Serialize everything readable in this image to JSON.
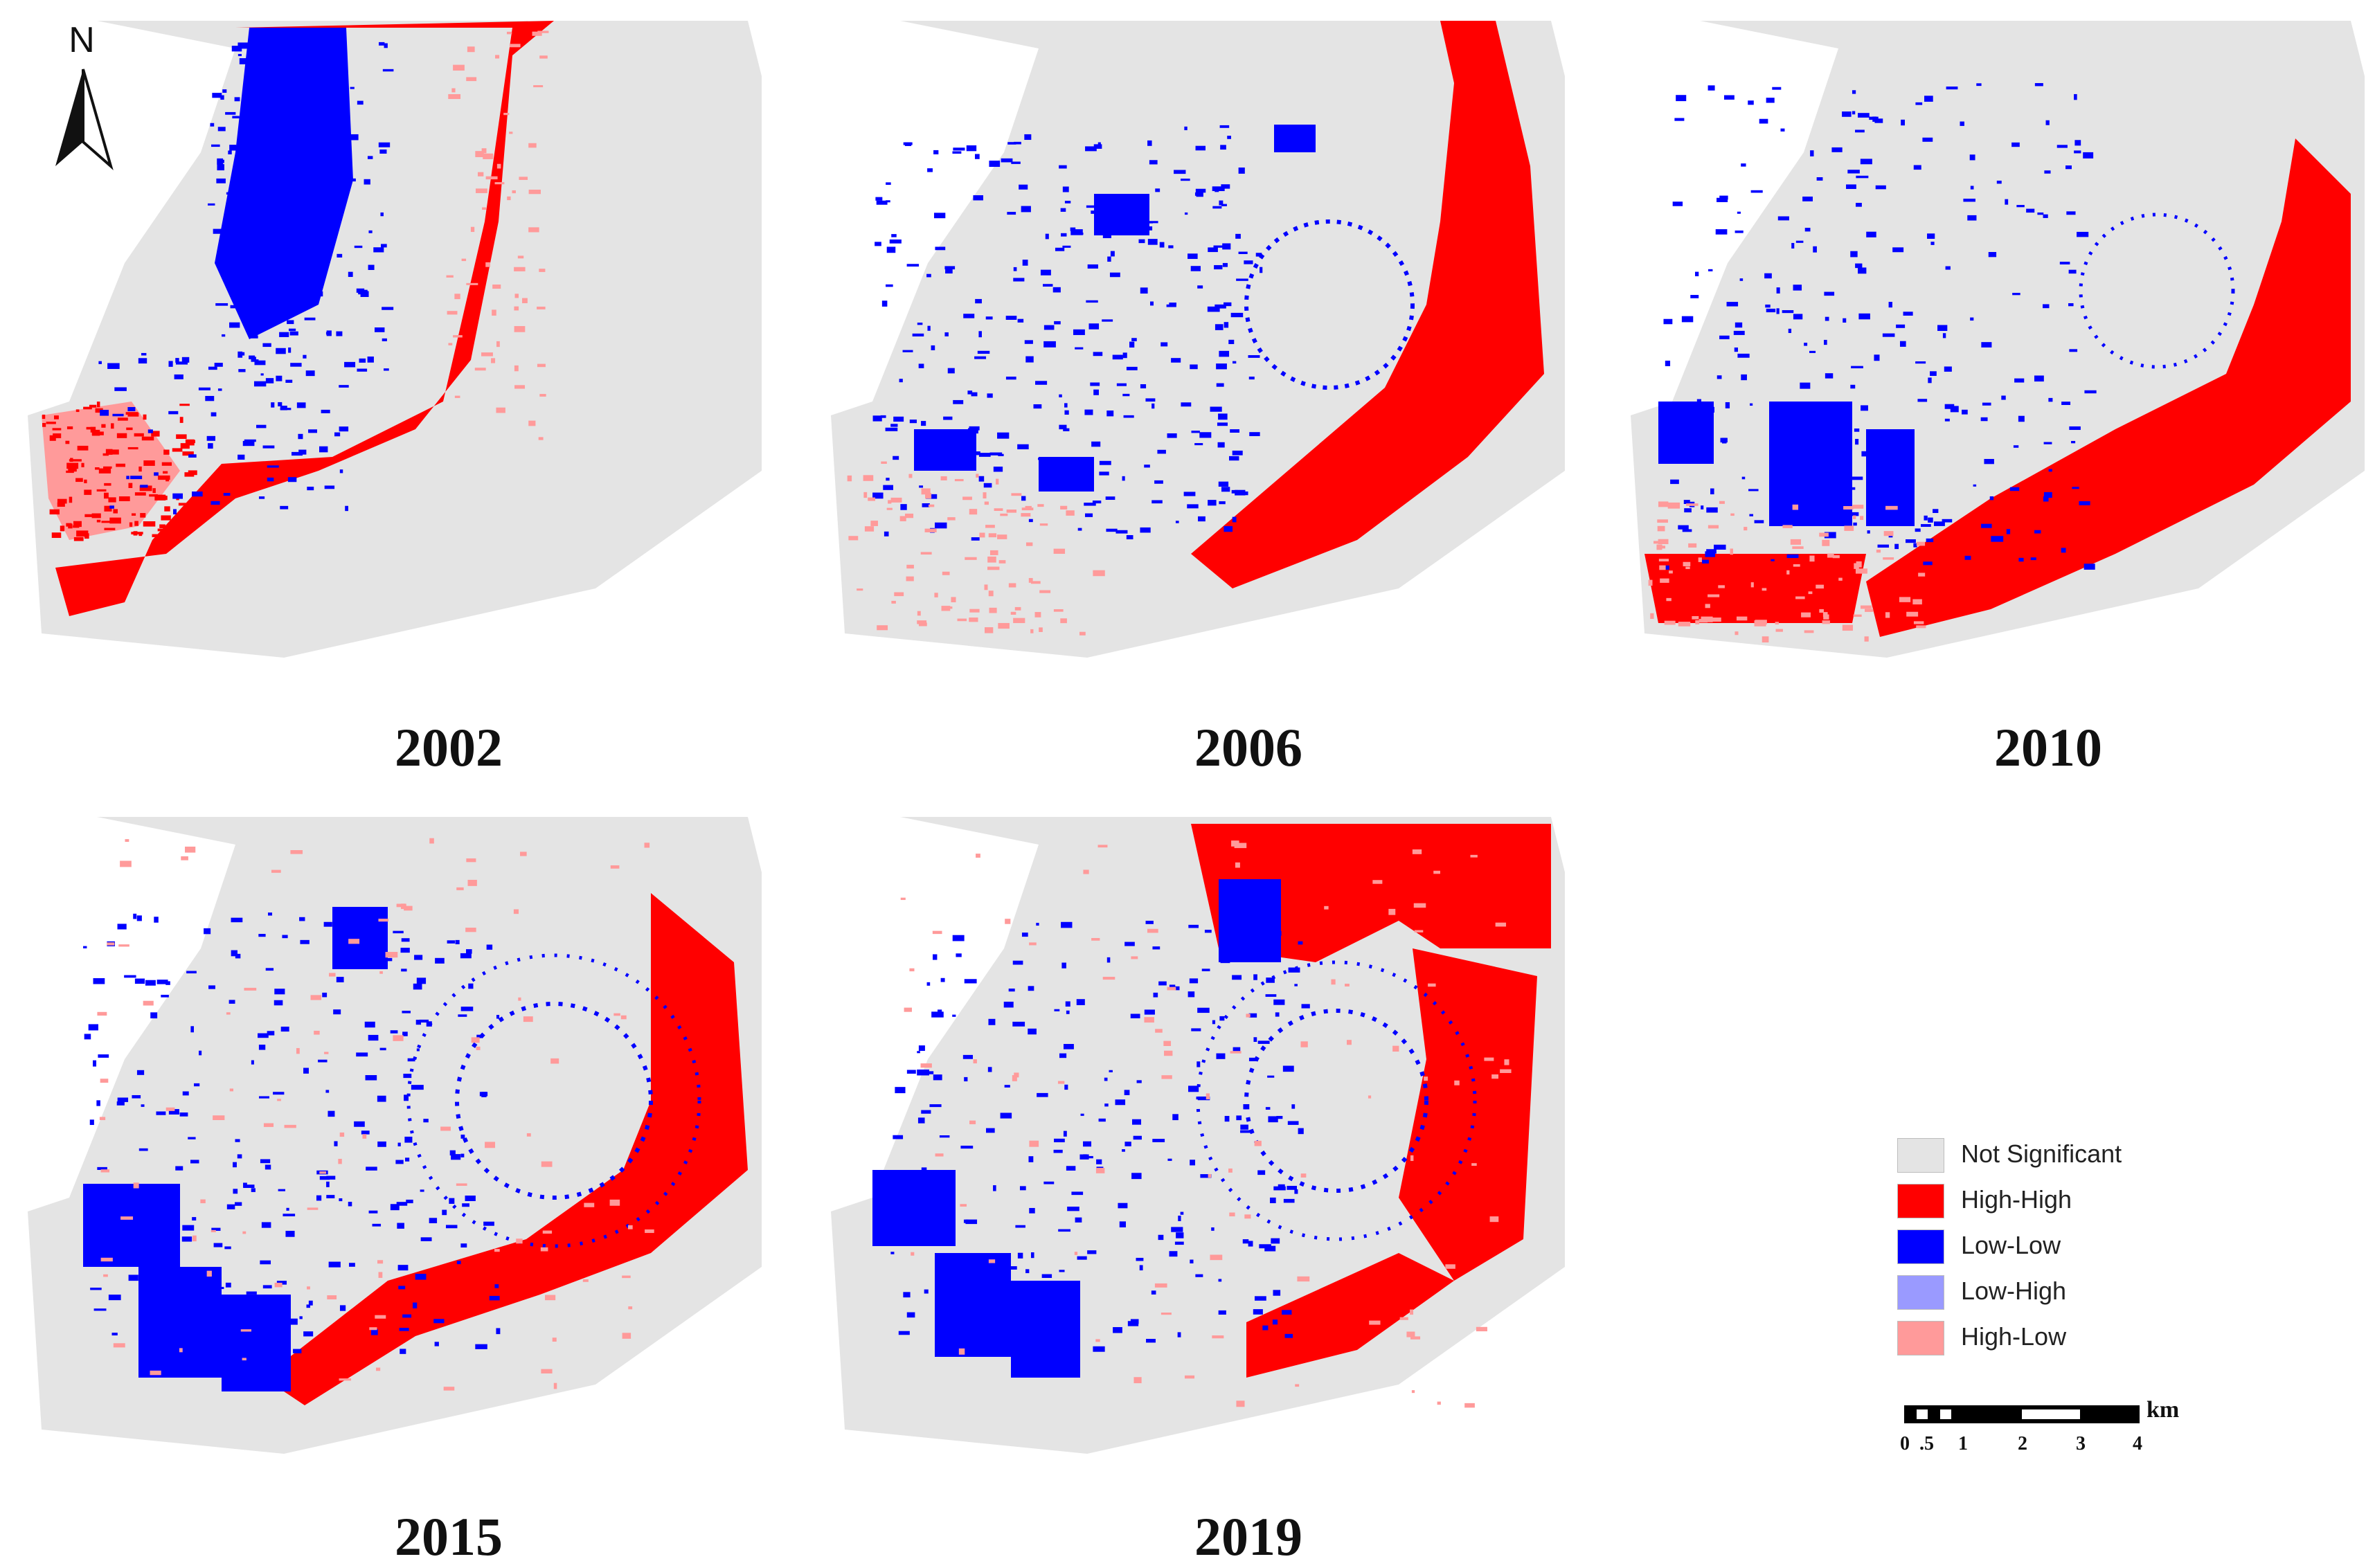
{
  "north_arrow": {
    "label": "N"
  },
  "colors": {
    "not_significant": "#e4e4e4",
    "high_high": "#ff0000",
    "low_low": "#0000ff",
    "low_high": "#9a9aff",
    "high_low": "#ff9a9a"
  },
  "maps": [
    {
      "year": "2002"
    },
    {
      "year": "2006"
    },
    {
      "year": "2010"
    },
    {
      "year": "2015"
    },
    {
      "year": "2019"
    }
  ],
  "legend": {
    "items": [
      {
        "label": "Not Significant",
        "color": "#e4e4e4"
      },
      {
        "label": "High-High",
        "color": "#ff0000"
      },
      {
        "label": "Low-Low",
        "color": "#0000ff"
      },
      {
        "label": "Low-High",
        "color": "#9a9aff"
      },
      {
        "label": "High-Low",
        "color": "#ff9a9a"
      }
    ]
  },
  "scale_bar": {
    "unit": "km",
    "ticks": [
      "0",
      ".5",
      "1",
      "2",
      "3",
      "4"
    ]
  }
}
